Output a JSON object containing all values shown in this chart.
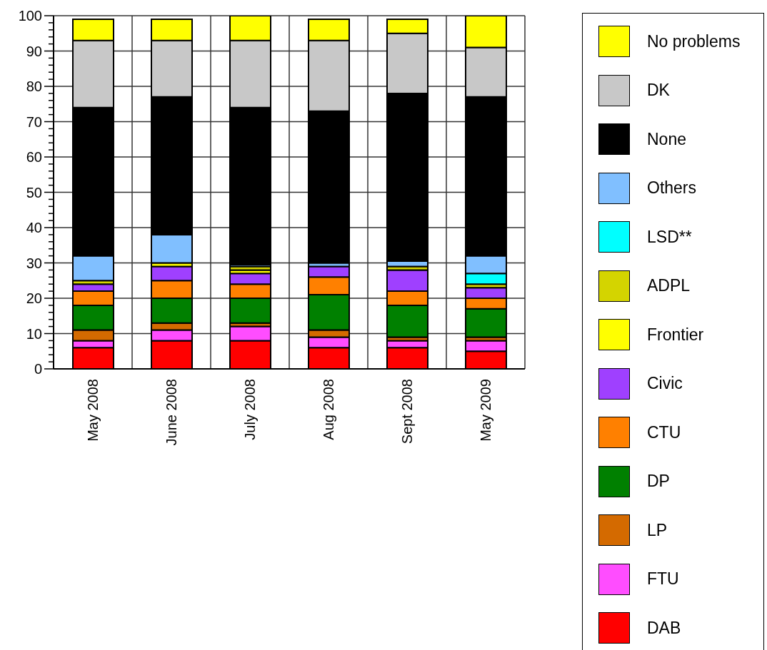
{
  "chart_data": {
    "type": "bar",
    "stacked": true,
    "categories": [
      "May 2008",
      "June 2008",
      "July 2008",
      "Aug 2008",
      "Sept 2008",
      "May 2009"
    ],
    "series": [
      {
        "name": "DAB",
        "color": "#ff0000",
        "values": [
          6,
          8,
          8,
          6,
          6,
          5
        ]
      },
      {
        "name": "FTU",
        "color": "#ff4dff",
        "values": [
          2,
          3,
          4,
          3,
          2,
          3
        ]
      },
      {
        "name": "LP",
        "color": "#d46a00",
        "values": [
          3,
          2,
          1,
          2,
          1,
          1
        ]
      },
      {
        "name": "DP",
        "color": "#008000",
        "values": [
          7,
          7,
          7,
          10,
          9,
          8
        ]
      },
      {
        "name": "CTU",
        "color": "#ff8000",
        "values": [
          4,
          5,
          4,
          5,
          4,
          3
        ]
      },
      {
        "name": "Civic",
        "color": "#9f40ff",
        "values": [
          2,
          4,
          3,
          3,
          6,
          3
        ]
      },
      {
        "name": "Frontier",
        "color": "#ffff00",
        "values": [
          0,
          1,
          1,
          0,
          0,
          0
        ]
      },
      {
        "name": "ADPL",
        "color": "#d4d400",
        "values": [
          1,
          0,
          1,
          0,
          1,
          1
        ]
      },
      {
        "name": "LSD**",
        "color": "#00ffff",
        "values": [
          0,
          0,
          0,
          0,
          0,
          3
        ]
      },
      {
        "name": "Others",
        "color": "#80bfff",
        "values": [
          7,
          8,
          0.5,
          1,
          1.5,
          5
        ]
      },
      {
        "name": "None",
        "color": "#000000",
        "values": [
          42,
          39,
          44.5,
          43,
          47.5,
          45
        ]
      },
      {
        "name": "DK",
        "color": "#c8c8c8",
        "values": [
          19,
          16,
          19,
          20,
          17,
          14
        ]
      },
      {
        "name": "No problems",
        "color": "#ffff00",
        "values": [
          6,
          6,
          7,
          6,
          4,
          9
        ]
      }
    ],
    "ylim": [
      0,
      100
    ],
    "yticks": [
      0,
      {
        "value": 2,
        "label": null
      },
      {
        "value": 4,
        "label": null
      },
      {
        "value": 6,
        "label": null
      },
      {
        "value": 8,
        "label": null
      },
      10,
      {
        "value": 12,
        "label": null
      },
      {
        "value": 14,
        "label": null
      },
      {
        "value": 16,
        "label": null
      },
      {
        "value": 18,
        "label": null
      },
      20,
      {
        "value": 22,
        "label": null
      },
      {
        "value": 24,
        "label": null
      },
      {
        "value": 26,
        "label": null
      },
      {
        "value": 28,
        "label": null
      },
      30,
      {
        "value": 32,
        "label": null
      },
      {
        "value": 34,
        "label": null
      },
      {
        "value": 36,
        "label": null
      },
      {
        "value": 38,
        "label": null
      },
      40,
      {
        "value": 42,
        "label": null
      },
      {
        "value": 44,
        "label": null
      },
      {
        "value": 46,
        "label": null
      },
      {
        "value": 48,
        "label": null
      },
      50,
      {
        "value": 52,
        "label": null
      },
      {
        "value": 54,
        "label": null
      },
      {
        "value": 56,
        "label": null
      },
      {
        "value": 58,
        "label": null
      },
      60,
      {
        "value": 62,
        "label": null
      },
      {
        "value": 64,
        "label": null
      },
      {
        "value": 66,
        "label": null
      },
      {
        "value": 68,
        "label": null
      },
      70,
      {
        "value": 72,
        "label": null
      },
      {
        "value": 74,
        "label": null
      },
      {
        "value": 76,
        "label": null
      },
      {
        "value": 78,
        "label": null
      },
      80,
      {
        "value": 82,
        "label": null
      },
      {
        "value": 84,
        "label": null
      },
      {
        "value": 86,
        "label": null
      },
      {
        "value": 88,
        "label": null
      },
      90,
      {
        "value": 92,
        "label": null
      },
      {
        "value": 94,
        "label": null
      },
      {
        "value": 96,
        "label": null
      },
      {
        "value": 98,
        "label": null
      },
      100
    ],
    "grid": true,
    "legend": "right"
  }
}
